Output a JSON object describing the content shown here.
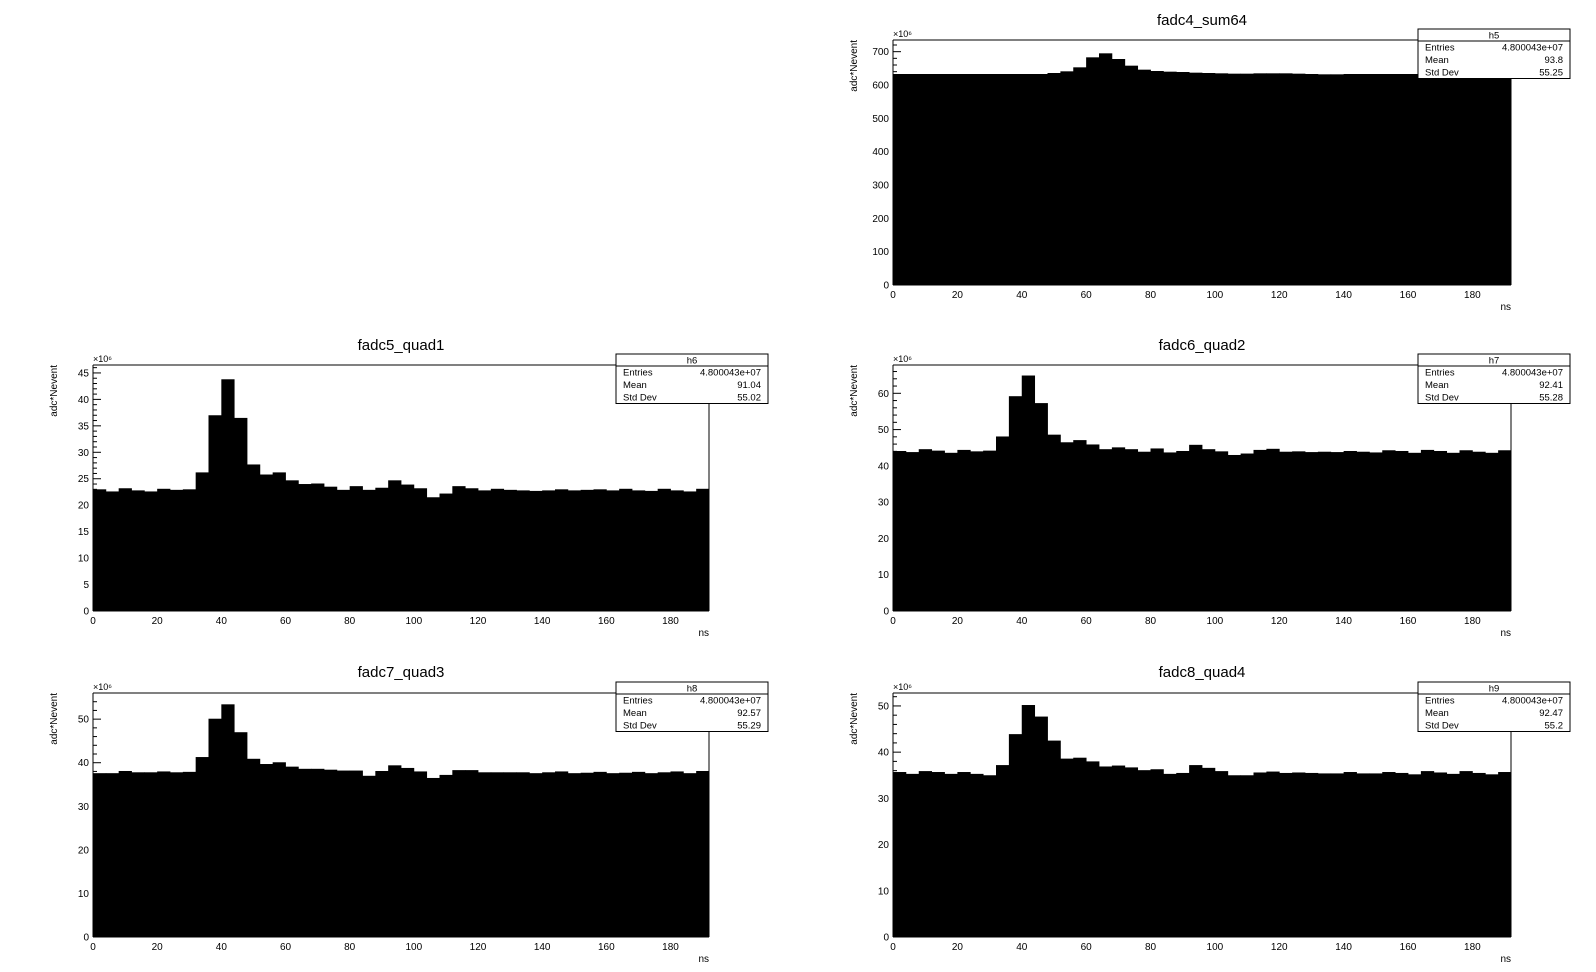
{
  "chart_data": [
    {
      "type": "bar",
      "title": "fadc4_sum64",
      "xlabel": "ns",
      "ylabel": "adc*Nevent",
      "y_exponent_label": "×10⁶",
      "xlim": [
        0,
        192
      ],
      "ylim": [
        0,
        735
      ],
      "xticks": [
        0,
        20,
        40,
        60,
        80,
        100,
        120,
        140,
        160,
        180
      ],
      "yticks": [
        0,
        100,
        200,
        300,
        400,
        500,
        600,
        700
      ],
      "bin_width": 4,
      "values": [
        633,
        633,
        633,
        633,
        633,
        633,
        633,
        633,
        633,
        633,
        633,
        633,
        636,
        641,
        653,
        683,
        695,
        678,
        658,
        646,
        642,
        640,
        639,
        637,
        636,
        635,
        634,
        634,
        635,
        635,
        635,
        634,
        633,
        632,
        632,
        633,
        633,
        633,
        633,
        633,
        633,
        633,
        633,
        633,
        633,
        633,
        633,
        633
      ],
      "fill_color": "#000000",
      "stats": {
        "name": "h5",
        "rows": [
          {
            "label": "Entries",
            "value": "4.800043e+07"
          },
          {
            "label": "Mean",
            "value": "93.8"
          },
          {
            "label": "Std Dev",
            "value": "55.25"
          }
        ]
      }
    },
    {
      "type": "bar",
      "title": "fadc5_quad1",
      "xlabel": "ns",
      "ylabel": "adc*Nevent",
      "y_exponent_label": "×10⁶",
      "xlim": [
        0,
        192
      ],
      "ylim": [
        0,
        46.5
      ],
      "xticks": [
        0,
        20,
        40,
        60,
        80,
        100,
        120,
        140,
        160,
        180
      ],
      "yticks": [
        0,
        5,
        10,
        15,
        20,
        25,
        30,
        35,
        40,
        45
      ],
      "bin_width": 4,
      "values": [
        23.0,
        22.6,
        23.2,
        22.8,
        22.6,
        23.1,
        22.9,
        23.0,
        26.2,
        37.0,
        43.8,
        36.5,
        27.7,
        25.8,
        26.2,
        24.7,
        24.0,
        24.1,
        23.5,
        22.9,
        23.6,
        22.9,
        23.3,
        24.7,
        23.9,
        23.2,
        21.5,
        22.2,
        23.6,
        23.2,
        22.8,
        23.1,
        22.9,
        22.8,
        22.7,
        22.8,
        23.0,
        22.8,
        22.9,
        23.0,
        22.8,
        23.1,
        22.8,
        22.7,
        23.1,
        22.8,
        22.6,
        23.1
      ],
      "fill_color": "#000000",
      "stats": {
        "name": "h6",
        "rows": [
          {
            "label": "Entries",
            "value": "4.800043e+07"
          },
          {
            "label": "Mean",
            "value": "91.04"
          },
          {
            "label": "Std Dev",
            "value": "55.02"
          }
        ]
      }
    },
    {
      "type": "bar",
      "title": "fadc6_quad2",
      "xlabel": "ns",
      "ylabel": "adc*Nevent",
      "y_exponent_label": "×10⁶",
      "xlim": [
        0,
        192
      ],
      "ylim": [
        0,
        67.8
      ],
      "xticks": [
        0,
        20,
        40,
        60,
        80,
        100,
        120,
        140,
        160,
        180
      ],
      "yticks": [
        0,
        10,
        20,
        30,
        40,
        50,
        60
      ],
      "bin_width": 4,
      "values": [
        44.1,
        43.8,
        44.6,
        44.2,
        43.6,
        44.4,
        44.0,
        44.2,
        48.1,
        59.2,
        64.9,
        57.3,
        48.6,
        46.5,
        47.1,
        45.9,
        44.6,
        45.1,
        44.6,
        43.9,
        44.8,
        43.7,
        44.1,
        45.8,
        44.6,
        44.0,
        43.0,
        43.4,
        44.4,
        44.7,
        43.9,
        44.0,
        43.8,
        43.9,
        43.8,
        44.1,
        43.9,
        43.7,
        44.3,
        44.1,
        43.6,
        44.4,
        44.1,
        43.6,
        44.3,
        43.9,
        43.6,
        44.3
      ],
      "fill_color": "#000000",
      "stats": {
        "name": "h7",
        "rows": [
          {
            "label": "Entries",
            "value": "4.800043e+07"
          },
          {
            "label": "Mean",
            "value": "92.41"
          },
          {
            "label": "Std Dev",
            "value": "55.28"
          }
        ]
      }
    },
    {
      "type": "bar",
      "title": "fadc7_quad3",
      "xlabel": "ns",
      "ylabel": "adc*Nevent",
      "y_exponent_label": "×10⁶",
      "xlim": [
        0,
        192
      ],
      "ylim": [
        0,
        56
      ],
      "xticks": [
        0,
        20,
        40,
        60,
        80,
        100,
        120,
        140,
        160,
        180
      ],
      "yticks": [
        0,
        10,
        20,
        30,
        40,
        50
      ],
      "bin_width": 4,
      "values": [
        37.6,
        37.6,
        38.1,
        37.8,
        37.8,
        38.0,
        37.8,
        37.9,
        41.3,
        50.1,
        53.4,
        47.0,
        40.9,
        39.7,
        40.1,
        39.1,
        38.6,
        38.6,
        38.4,
        38.2,
        38.2,
        37.0,
        38.1,
        39.4,
        38.8,
        38.0,
        36.5,
        37.2,
        38.3,
        38.3,
        37.8,
        37.8,
        37.8,
        37.8,
        37.6,
        37.8,
        38.0,
        37.6,
        37.7,
        37.9,
        37.6,
        37.7,
        37.9,
        37.6,
        37.8,
        38.0,
        37.6,
        38.1
      ],
      "fill_color": "#000000",
      "stats": {
        "name": "h8",
        "rows": [
          {
            "label": "Entries",
            "value": "4.800043e+07"
          },
          {
            "label": "Mean",
            "value": "92.57"
          },
          {
            "label": "Std Dev",
            "value": "55.29"
          }
        ]
      }
    },
    {
      "type": "bar",
      "title": "fadc8_quad4",
      "xlabel": "ns",
      "ylabel": "adc*Nevent",
      "y_exponent_label": "×10⁶",
      "xlim": [
        0,
        192
      ],
      "ylim": [
        0,
        52.8
      ],
      "xticks": [
        0,
        20,
        40,
        60,
        80,
        100,
        120,
        140,
        160,
        180
      ],
      "yticks": [
        0,
        10,
        20,
        30,
        40,
        50
      ],
      "bin_width": 4,
      "values": [
        35.7,
        35.3,
        35.9,
        35.7,
        35.3,
        35.7,
        35.3,
        35.0,
        37.2,
        43.9,
        50.2,
        47.7,
        42.5,
        38.6,
        38.8,
        38.0,
        36.9,
        37.1,
        36.7,
        36.1,
        36.3,
        35.3,
        35.5,
        37.2,
        36.6,
        35.9,
        35.0,
        35.0,
        35.6,
        35.8,
        35.5,
        35.6,
        35.5,
        35.4,
        35.4,
        35.7,
        35.4,
        35.4,
        35.7,
        35.5,
        35.2,
        35.9,
        35.6,
        35.3,
        35.9,
        35.5,
        35.2,
        35.7
      ],
      "fill_color": "#000000",
      "stats": {
        "name": "h9",
        "rows": [
          {
            "label": "Entries",
            "value": "4.800043e+07"
          },
          {
            "label": "Mean",
            "value": "92.47"
          },
          {
            "label": "Std Dev",
            "value": "55.2"
          }
        ]
      }
    }
  ]
}
